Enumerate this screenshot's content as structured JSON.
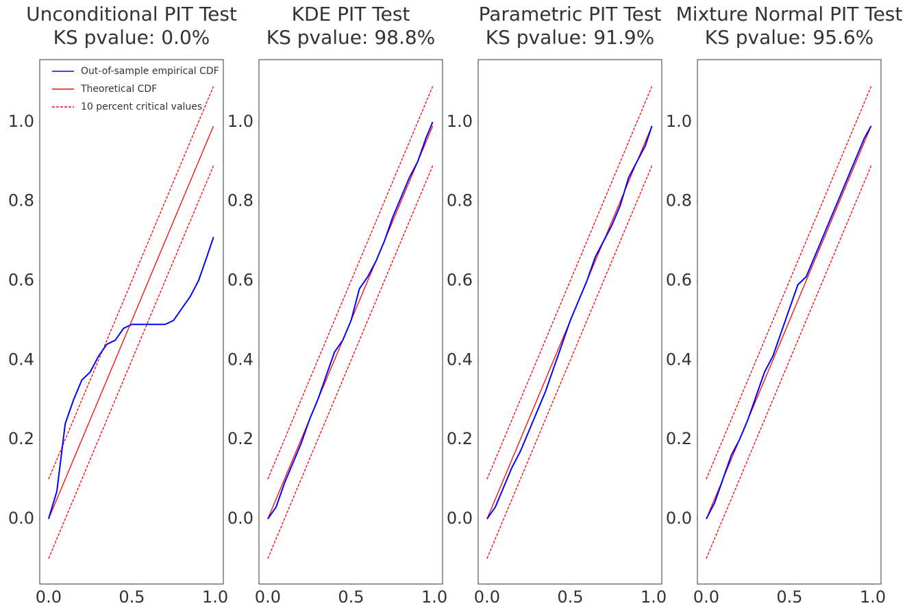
{
  "chart_data": [
    {
      "type": "line",
      "title": "Unconditional PIT Test",
      "subtitle": "KS pvalue: 0.0%",
      "legend": "upper left",
      "x": [
        0,
        0.05,
        0.1,
        0.15,
        0.2,
        0.25,
        0.3,
        0.35,
        0.4,
        0.45,
        0.5,
        0.55,
        0.6,
        0.65,
        0.7,
        0.75,
        0.8,
        0.85,
        0.9,
        0.95,
        0.99
      ],
      "series": [
        {
          "name": "Out-of-sample empirical CDF",
          "color": "#0000ff",
          "values": [
            0,
            0.07,
            0.24,
            0.3,
            0.35,
            0.37,
            0.41,
            0.44,
            0.45,
            0.48,
            0.49,
            0.49,
            0.49,
            0.49,
            0.49,
            0.5,
            0.53,
            0.56,
            0.6,
            0.66,
            0.71
          ]
        },
        {
          "name": "Theoretical CDF",
          "color": "#ff0000",
          "values": [
            0,
            0.05,
            0.1,
            0.15,
            0.2,
            0.25,
            0.3,
            0.35,
            0.4,
            0.45,
            0.5,
            0.55,
            0.6,
            0.65,
            0.7,
            0.75,
            0.8,
            0.85,
            0.9,
            0.95,
            0.99
          ]
        },
        {
          "name": "10 percent critical values",
          "color": "#ff0000",
          "dash": true,
          "values": [
            0.1,
            0.15,
            0.2,
            0.25,
            0.3,
            0.35,
            0.4,
            0.45,
            0.5,
            0.55,
            0.6,
            0.65,
            0.7,
            0.75,
            0.8,
            0.85,
            0.9,
            0.95,
            1.0,
            1.05,
            1.09
          ]
        },
        {
          "color": "#ff0000",
          "dash": true,
          "values": [
            -0.1,
            -0.05,
            0,
            0.05,
            0.1,
            0.15,
            0.2,
            0.25,
            0.3,
            0.35,
            0.4,
            0.45,
            0.5,
            0.55,
            0.6,
            0.65,
            0.7,
            0.75,
            0.8,
            0.85,
            0.89
          ]
        }
      ],
      "xlim": [
        -0.053,
        1.049
      ],
      "ylim": [
        -0.164,
        1.157
      ],
      "xticks": [
        {
          "value": 0,
          "label": "0.0"
        },
        0.5,
        {
          "value": 1,
          "label": "1.0"
        }
      ],
      "yticks": [
        {
          "value": 0,
          "label": "0.0"
        },
        0.2,
        0.4,
        0.6,
        0.8,
        {
          "value": 1,
          "label": "1.0"
        }
      ]
    },
    {
      "type": "line",
      "title": "KDE PIT Test",
      "subtitle": "KS pvalue: 98.8%",
      "x": [
        0,
        0.05,
        0.1,
        0.15,
        0.2,
        0.25,
        0.3,
        0.35,
        0.4,
        0.45,
        0.5,
        0.55,
        0.6,
        0.65,
        0.7,
        0.75,
        0.8,
        0.85,
        0.9,
        0.95,
        0.99
      ],
      "series": [
        {
          "color": "#0000ff",
          "values": [
            0,
            0.03,
            0.09,
            0.14,
            0.19,
            0.25,
            0.3,
            0.36,
            0.42,
            0.45,
            0.5,
            0.58,
            0.61,
            0.65,
            0.7,
            0.76,
            0.81,
            0.86,
            0.9,
            0.96,
            1.0
          ]
        },
        {
          "color": "#ff0000",
          "values": [
            0,
            0.05,
            0.1,
            0.15,
            0.2,
            0.25,
            0.3,
            0.35,
            0.4,
            0.45,
            0.5,
            0.55,
            0.6,
            0.65,
            0.7,
            0.75,
            0.8,
            0.85,
            0.9,
            0.95,
            0.99
          ]
        },
        {
          "color": "#ff0000",
          "dash": true,
          "values": [
            0.1,
            0.15,
            0.2,
            0.25,
            0.3,
            0.35,
            0.4,
            0.45,
            0.5,
            0.55,
            0.6,
            0.65,
            0.7,
            0.75,
            0.8,
            0.85,
            0.9,
            0.95,
            1.0,
            1.05,
            1.09
          ]
        },
        {
          "color": "#ff0000",
          "dash": true,
          "values": [
            -0.1,
            -0.05,
            0,
            0.05,
            0.1,
            0.15,
            0.2,
            0.25,
            0.3,
            0.35,
            0.4,
            0.45,
            0.5,
            0.55,
            0.6,
            0.65,
            0.7,
            0.75,
            0.8,
            0.85,
            0.89
          ]
        }
      ],
      "xlim": [
        -0.053,
        1.049
      ],
      "ylim": [
        -0.164,
        1.157
      ],
      "xticks": [
        {
          "value": 0,
          "label": "0.0"
        },
        0.5,
        {
          "value": 1,
          "label": "1.0"
        }
      ],
      "yticks": [
        {
          "value": 0,
          "label": "0.0"
        },
        0.2,
        0.4,
        0.6,
        0.8,
        {
          "value": 1,
          "label": "1.0"
        }
      ]
    },
    {
      "type": "line",
      "title": "Parametric PIT Test",
      "subtitle": "KS pvalue: 91.9%",
      "x": [
        0,
        0.05,
        0.1,
        0.15,
        0.2,
        0.25,
        0.3,
        0.35,
        0.4,
        0.45,
        0.5,
        0.55,
        0.6,
        0.65,
        0.7,
        0.75,
        0.8,
        0.85,
        0.9,
        0.95,
        0.99
      ],
      "series": [
        {
          "color": "#0000ff",
          "values": [
            0,
            0.03,
            0.08,
            0.13,
            0.17,
            0.22,
            0.27,
            0.32,
            0.38,
            0.44,
            0.5,
            0.55,
            0.6,
            0.66,
            0.7,
            0.74,
            0.79,
            0.86,
            0.9,
            0.94,
            0.99
          ]
        },
        {
          "color": "#ff0000",
          "values": [
            0,
            0.05,
            0.1,
            0.15,
            0.2,
            0.25,
            0.3,
            0.35,
            0.4,
            0.45,
            0.5,
            0.55,
            0.6,
            0.65,
            0.7,
            0.75,
            0.8,
            0.85,
            0.9,
            0.95,
            0.99
          ]
        },
        {
          "color": "#ff0000",
          "dash": true,
          "values": [
            0.1,
            0.15,
            0.2,
            0.25,
            0.3,
            0.35,
            0.4,
            0.45,
            0.5,
            0.55,
            0.6,
            0.65,
            0.7,
            0.75,
            0.8,
            0.85,
            0.9,
            0.95,
            1.0,
            1.05,
            1.09
          ]
        },
        {
          "color": "#ff0000",
          "dash": true,
          "values": [
            -0.1,
            -0.05,
            0,
            0.05,
            0.1,
            0.15,
            0.2,
            0.25,
            0.3,
            0.35,
            0.4,
            0.45,
            0.5,
            0.55,
            0.6,
            0.65,
            0.7,
            0.75,
            0.8,
            0.85,
            0.89
          ]
        }
      ],
      "xlim": [
        -0.053,
        1.049
      ],
      "ylim": [
        -0.164,
        1.157
      ],
      "xticks": [
        {
          "value": 0,
          "label": "0.0"
        },
        0.5,
        {
          "value": 1,
          "label": "1.0"
        }
      ],
      "yticks": [
        {
          "value": 0,
          "label": "0.0"
        },
        0.2,
        0.4,
        0.6,
        0.8,
        {
          "value": 1,
          "label": "1.0"
        }
      ]
    },
    {
      "type": "line",
      "title": "Mixture Normal PIT Test",
      "subtitle": "KS pvalue: 95.6%",
      "x": [
        0,
        0.05,
        0.1,
        0.15,
        0.2,
        0.25,
        0.3,
        0.35,
        0.4,
        0.45,
        0.5,
        0.55,
        0.6,
        0.65,
        0.7,
        0.75,
        0.8,
        0.85,
        0.9,
        0.95,
        0.99
      ],
      "series": [
        {
          "color": "#0000ff",
          "values": [
            0,
            0.04,
            0.1,
            0.16,
            0.2,
            0.25,
            0.31,
            0.37,
            0.41,
            0.47,
            0.53,
            0.59,
            0.61,
            0.66,
            0.71,
            0.76,
            0.81,
            0.86,
            0.91,
            0.96,
            0.99
          ]
        },
        {
          "color": "#ff0000",
          "values": [
            0,
            0.05,
            0.1,
            0.15,
            0.2,
            0.25,
            0.3,
            0.35,
            0.4,
            0.45,
            0.5,
            0.55,
            0.6,
            0.65,
            0.7,
            0.75,
            0.8,
            0.85,
            0.9,
            0.95,
            0.99
          ]
        },
        {
          "color": "#ff0000",
          "dash": true,
          "values": [
            0.1,
            0.15,
            0.2,
            0.25,
            0.3,
            0.35,
            0.4,
            0.45,
            0.5,
            0.55,
            0.6,
            0.65,
            0.7,
            0.75,
            0.8,
            0.85,
            0.9,
            0.95,
            1.0,
            1.05,
            1.09
          ]
        },
        {
          "color": "#ff0000",
          "dash": true,
          "values": [
            -0.1,
            -0.05,
            0,
            0.05,
            0.1,
            0.15,
            0.2,
            0.25,
            0.3,
            0.35,
            0.4,
            0.45,
            0.5,
            0.55,
            0.6,
            0.65,
            0.7,
            0.75,
            0.8,
            0.85,
            0.89
          ]
        }
      ],
      "xlim": [
        -0.053,
        1.049
      ],
      "ylim": [
        -0.164,
        1.157
      ],
      "xticks": [
        {
          "value": 0,
          "label": "0.0"
        },
        0.5,
        {
          "value": 1,
          "label": "1.0"
        }
      ],
      "yticks": [
        {
          "value": 0,
          "label": "0.0"
        },
        0.2,
        0.4,
        0.6,
        0.8,
        {
          "value": 1,
          "label": "1.0"
        }
      ]
    }
  ]
}
